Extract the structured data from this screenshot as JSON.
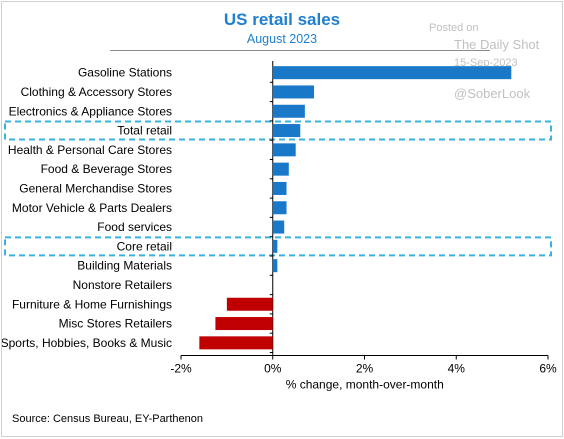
{
  "header": {
    "title": "US retail sales",
    "subtitle": "August 2023"
  },
  "watermark": {
    "posted": "Posted on",
    "site": "The Daily Shot",
    "date": "15-Sep-2023",
    "handle": "@SoberLook"
  },
  "source": "Source: Census Bureau, EY-Parthenon",
  "colors": {
    "positive": "#1a78c8",
    "negative": "#c00000",
    "highlight": "#3ab2e0",
    "title": "#1f7fd0"
  },
  "chart_data": {
    "type": "bar",
    "orientation": "horizontal",
    "title": "US retail sales",
    "subtitle": "August 2023",
    "xlabel": "% change, month-over-month",
    "xlim": [
      -2,
      6
    ],
    "xticks": [
      -2,
      0,
      2,
      4,
      6
    ],
    "xtick_labels": [
      "-2%",
      "0%",
      "2%",
      "4%",
      "6%"
    ],
    "categories": [
      "Gasoline Stations",
      "Clothing & Accessory Stores",
      "Electronics & Appliance Stores",
      "Total retail",
      "Health & Personal Care Stores",
      "Food & Beverage Stores",
      "General Merchandise Stores",
      "Motor Vehicle & Parts Dealers",
      "Food services",
      "Core retail",
      "Building Materials",
      "Nonstore Retailers",
      "Furniture & Home Furnishings",
      "Misc Stores Retailers",
      "Sports, Hobbies, Books & Music"
    ],
    "values": [
      5.2,
      0.9,
      0.7,
      0.6,
      0.5,
      0.35,
      0.3,
      0.3,
      0.25,
      0.1,
      0.1,
      0.0,
      -1.0,
      -1.25,
      -1.6
    ],
    "highlighted": [
      "Total retail",
      "Core retail"
    ],
    "grid": false
  }
}
